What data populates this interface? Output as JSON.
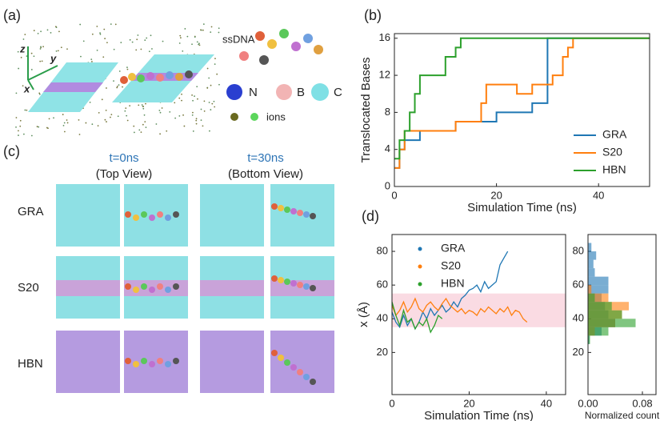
{
  "panel_a": {
    "label": "(a)",
    "axes": [
      "z",
      "y",
      "x"
    ],
    "ssdna": "ssDNA",
    "atoms": [
      "N",
      "B",
      "C"
    ],
    "ions": "ions"
  },
  "panel_c": {
    "label": "(c)",
    "columns": [
      {
        "time": "t=0ns",
        "view": "(Top View)"
      },
      {
        "time": "t=30ns",
        "view": "(Bottom View)"
      }
    ],
    "rows": [
      "GRA",
      "S20",
      "HBN"
    ]
  },
  "chart_data": [
    {
      "type": "line",
      "panel_label": "(b)",
      "step": true,
      "xlabel": "Simulation Time (ns)",
      "ylabel": "Translocated Bases",
      "xlim": [
        0,
        50
      ],
      "ylim": [
        0,
        16.5
      ],
      "xticks": [
        0,
        20,
        40
      ],
      "yticks": [
        0,
        4,
        8,
        12,
        16
      ],
      "legend": "lower right",
      "legend_marker": "line",
      "series": [
        {
          "name": "GRA",
          "color": "#1f77b4",
          "x": [
            0,
            1,
            2,
            5,
            10,
            12,
            18,
            20,
            25,
            27,
            29,
            30,
            50
          ],
          "values": [
            2,
            4,
            5,
            6,
            6,
            7,
            7,
            8,
            8,
            9,
            9,
            16,
            16
          ]
        },
        {
          "name": "S20",
          "color": "#ff7f0e",
          "x": [
            0,
            1,
            2,
            10,
            12,
            15,
            17,
            18,
            22,
            24,
            27,
            29,
            31,
            33,
            34,
            35,
            50
          ],
          "values": [
            2,
            4,
            6,
            6,
            7,
            7,
            9,
            11,
            11,
            10,
            11,
            11,
            12,
            14,
            15,
            16,
            16
          ]
        },
        {
          "name": "HBN",
          "color": "#2ca02c",
          "x": [
            0,
            1,
            2,
            3,
            4,
            5,
            7,
            10,
            12,
            13,
            50
          ],
          "values": [
            3,
            5,
            6,
            8,
            10,
            12,
            12,
            14,
            15,
            16,
            16
          ]
        }
      ]
    },
    {
      "type": "line",
      "panel_label": "(d)",
      "step": false,
      "xlabel": "Simulation Time (ns)",
      "ylabel": "x (Å)",
      "xlim": [
        0,
        45
      ],
      "ylim": [
        -5,
        90
      ],
      "xticks": [
        0,
        20,
        40
      ],
      "yticks": [
        20,
        40,
        60,
        80
      ],
      "legend": "upper center",
      "legend_marker": "dot",
      "shaded_band": {
        "from": 35,
        "to": 55,
        "color": "#fadbe3"
      },
      "series": [
        {
          "name": "GRA",
          "color": "#1f77b4",
          "x": [
            0,
            1,
            2,
            3,
            4,
            5,
            6,
            7,
            8,
            9,
            10,
            11,
            12,
            13,
            14,
            15,
            16,
            17,
            18,
            19,
            20,
            21,
            22,
            23,
            24,
            25,
            26,
            27,
            28,
            29,
            30
          ],
          "values": [
            44,
            38,
            35,
            42,
            36,
            40,
            34,
            38,
            44,
            40,
            46,
            42,
            45,
            48,
            44,
            46,
            50,
            47,
            52,
            54,
            57,
            58,
            60,
            56,
            62,
            58,
            60,
            62,
            72,
            76,
            80
          ]
        },
        {
          "name": "S20",
          "color": "#ff7f0e",
          "x": [
            0,
            1,
            2,
            3,
            4,
            5,
            6,
            7,
            8,
            9,
            10,
            11,
            12,
            13,
            14,
            15,
            16,
            17,
            18,
            19,
            20,
            21,
            22,
            23,
            24,
            25,
            26,
            27,
            28,
            29,
            30,
            31,
            32,
            33,
            34,
            35
          ],
          "values": [
            48,
            42,
            45,
            50,
            44,
            47,
            52,
            46,
            44,
            48,
            50,
            47,
            45,
            49,
            52,
            48,
            46,
            44,
            46,
            43,
            45,
            44,
            42,
            46,
            44,
            47,
            45,
            43,
            46,
            44,
            47,
            42,
            45,
            44,
            40,
            38
          ]
        },
        {
          "name": "HBN",
          "color": "#2ca02c",
          "x": [
            0,
            1,
            2,
            3,
            4,
            5,
            6,
            7,
            8,
            9,
            10,
            11,
            12,
            13
          ],
          "values": [
            50,
            42,
            36,
            45,
            38,
            40,
            34,
            38,
            36,
            40,
            32,
            36,
            42,
            40
          ]
        }
      ]
    },
    {
      "type": "histogram",
      "orientation": "horizontal",
      "xlabel": "Normalized count",
      "xlim": [
        0,
        0.1
      ],
      "ylim": [
        -5,
        90
      ],
      "xticks": [
        {
          "value": 0,
          "label": "0.00"
        },
        {
          "value": 0.08,
          "label": "0.08"
        }
      ],
      "yticks": [
        20,
        40,
        60,
        80
      ],
      "bins": [
        25,
        30,
        35,
        40,
        45,
        50,
        55,
        60,
        65,
        70,
        75,
        80,
        85
      ],
      "series": [
        {
          "name": "GRA",
          "color": "#1f77b4",
          "values": [
            0.002,
            0.02,
            0.04,
            0.03,
            0.025,
            0.02,
            0.03,
            0.03,
            0.01,
            0.008,
            0.012,
            0.005
          ]
        },
        {
          "name": "S20",
          "color": "#ff7f0e",
          "values": [
            0,
            0.01,
            0.04,
            0.05,
            0.06,
            0.03,
            0.005,
            0,
            0,
            0,
            0,
            0
          ]
        },
        {
          "name": "HBN",
          "color": "#2ca02c",
          "values": [
            0.003,
            0.03,
            0.07,
            0.05,
            0.035,
            0.01,
            0,
            0,
            0,
            0,
            0,
            0
          ]
        }
      ]
    }
  ]
}
